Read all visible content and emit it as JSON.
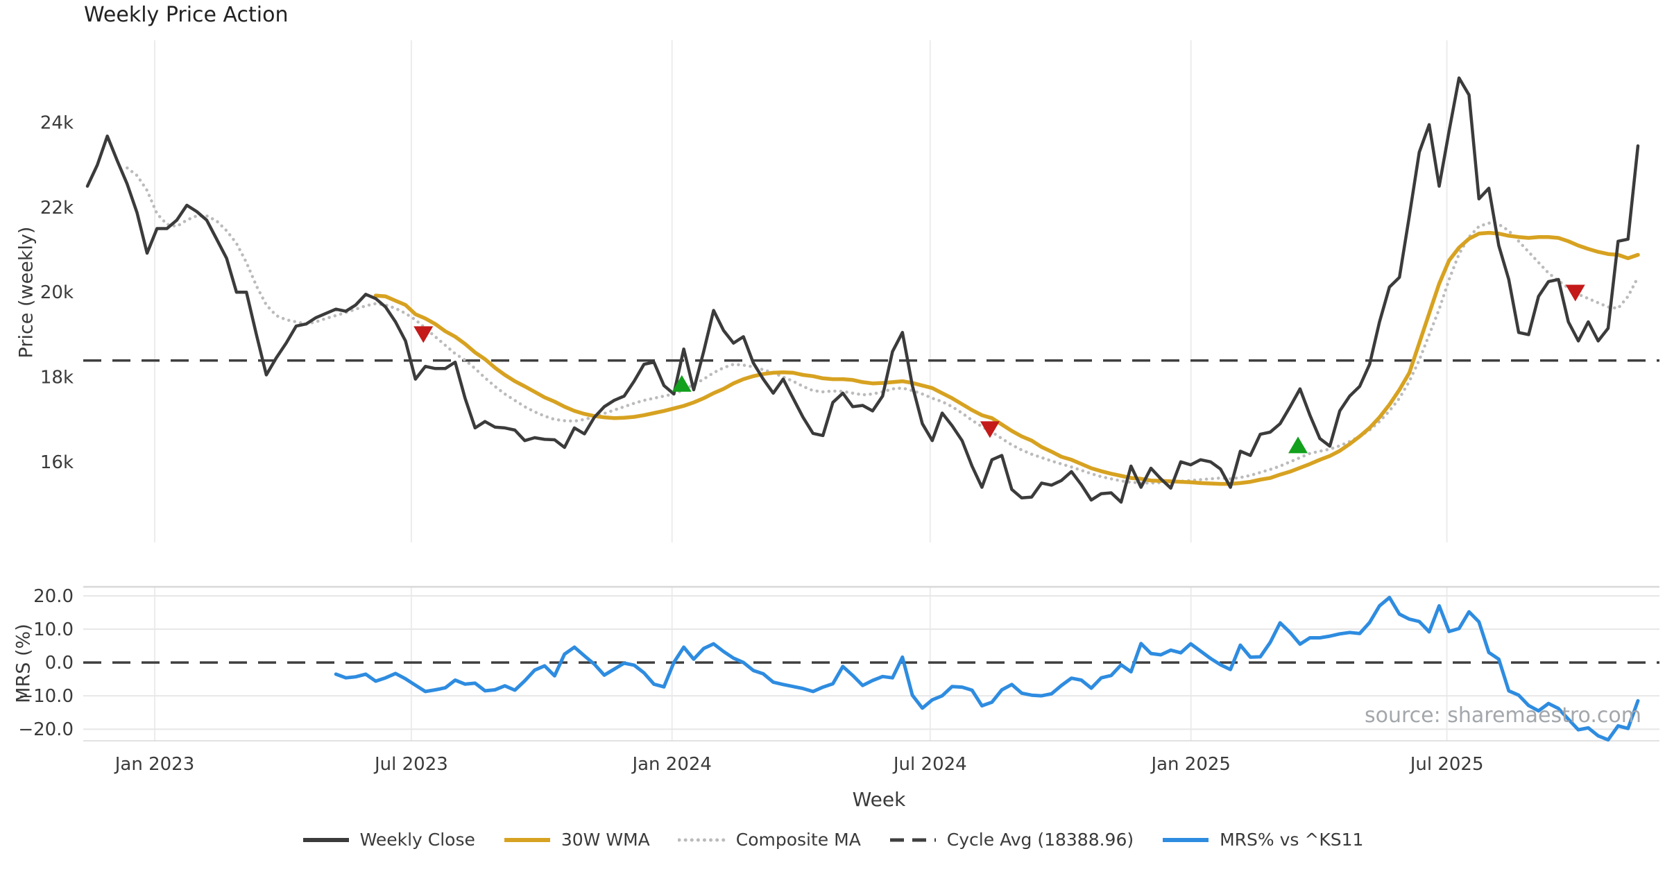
{
  "title": "Weekly Price Action",
  "source": "source: sharemaestro.com",
  "price_panel": {
    "ylabel": "Price (weekly)",
    "yticks": [
      {
        "label": "16k",
        "value": 16000
      },
      {
        "label": "18k",
        "value": 18000
      },
      {
        "label": "20k",
        "value": 20000
      },
      {
        "label": "22k",
        "value": 22000
      },
      {
        "label": "24k",
        "value": 24000
      }
    ]
  },
  "mrs_panel": {
    "ylabel": "MRS (%)",
    "yticks": [
      {
        "label": "20.0",
        "value": 20
      },
      {
        "label": "10.0",
        "value": 10
      },
      {
        "label": "0.0",
        "value": 0
      },
      {
        "label": "−10.0",
        "value": -10
      },
      {
        "label": "−20.0",
        "value": -20
      }
    ]
  },
  "xaxis": {
    "label": "Week",
    "ticks": [
      {
        "label": "Jan 2023",
        "week": 6.77
      },
      {
        "label": "Jul 2023",
        "week": 32.59
      },
      {
        "label": "Jan 2024",
        "week": 58.82
      },
      {
        "label": "Jul 2024",
        "week": 84.79
      },
      {
        "label": "Jan 2025",
        "week": 111.03
      },
      {
        "label": "Jul 2025",
        "week": 136.78
      }
    ]
  },
  "legend": [
    {
      "label": "Weekly Close",
      "style": "solid",
      "color": "#3b3b3b"
    },
    {
      "label": "30W WMA",
      "style": "solid",
      "color": "#d7a221"
    },
    {
      "label": "Composite MA",
      "style": "dotted",
      "color": "#bbbbbb"
    },
    {
      "label": "Cycle Avg (18388.96)",
      "style": "dashed",
      "color": "#3f3f3f"
    },
    {
      "label": "MRS% vs ^KS11",
      "style": "solid",
      "color": "#2e8ce0"
    }
  ],
  "colors": {
    "weekly_close": "#3b3b3b",
    "wma30": "#d7a221",
    "composite": "#bbbbbb",
    "cycle_avg": "#3f3f3f",
    "mrs": "#2e8ce0",
    "sell_marker": "#c41a1a",
    "buy_marker": "#12a01d",
    "grid": "#ececec",
    "mrs_grid": "#e7e7e7",
    "spine": "#d8d8d8",
    "tick_text": "#3a3a3a"
  },
  "chart_data": {
    "type": "line",
    "x_unit": "weeks",
    "title": "Weekly Price Action",
    "xlabel": "Week",
    "panels": [
      {
        "name": "price",
        "ylabel": "Price (weekly)",
        "ylim": [
          14100,
          25940
        ],
        "grid": "vertical-only"
      },
      {
        "name": "mrs",
        "ylabel": "MRS (%)",
        "ylim": [
          -23.5,
          22.7
        ],
        "grid": "both"
      }
    ],
    "x_tick_labels": [
      "Jan 2023",
      "Jul 2023",
      "Jan 2024",
      "Jul 2024",
      "Jan 2025",
      "Jul 2025"
    ],
    "legend_position": "bottom-center",
    "cycle_avg": 18388.96,
    "series": [
      {
        "name": "Weekly Close",
        "panel": "price",
        "start_week": 0,
        "values": [
          22500,
          23000,
          23680,
          23100,
          22550,
          21870,
          20920,
          21500,
          21500,
          21700,
          22050,
          21900,
          21700,
          21250,
          20800,
          20000,
          20000,
          19000,
          18050,
          18450,
          18800,
          19200,
          19250,
          19400,
          19500,
          19600,
          19550,
          19700,
          19950,
          19850,
          19650,
          19300,
          18850,
          17950,
          18250,
          18200,
          18200,
          18350,
          17500,
          16800,
          16950,
          16820,
          16800,
          16750,
          16500,
          16570,
          16530,
          16520,
          16340,
          16800,
          16660,
          17050,
          17300,
          17450,
          17550,
          17900,
          18300,
          18350,
          17800,
          17600,
          18660,
          17700,
          18600,
          19570,
          19100,
          18800,
          18950,
          18330,
          17950,
          17620,
          17950,
          17500,
          17050,
          16670,
          16620,
          17400,
          17620,
          17300,
          17330,
          17200,
          17550,
          18600,
          19050,
          17800,
          16900,
          16500,
          17150,
          16850,
          16500,
          15900,
          15400,
          16050,
          16150,
          15350,
          15150,
          15170,
          15500,
          15450,
          15560,
          15770,
          15460,
          15100,
          15250,
          15270,
          15050,
          15900,
          15400,
          15850,
          15600,
          15380,
          16000,
          15930,
          16050,
          16000,
          15830,
          15400,
          16250,
          16150,
          16650,
          16700,
          16900,
          17300,
          17720,
          17100,
          16550,
          16370,
          17200,
          17550,
          17780,
          18300,
          19300,
          20120,
          20350,
          21800,
          23300,
          23950,
          22500,
          23800,
          25050,
          24650,
          22200,
          22450,
          21100,
          20300,
          19050,
          19000,
          19900,
          20250,
          20300,
          19300,
          18850,
          19300,
          18850,
          19150,
          21200,
          21250,
          23450
        ]
      },
      {
        "name": "30W WMA",
        "panel": "price",
        "start_week": 29,
        "values": [
          19920,
          19900,
          19800,
          19700,
          19480,
          19380,
          19250,
          19080,
          18950,
          18780,
          18580,
          18420,
          18220,
          18050,
          17900,
          17780,
          17650,
          17520,
          17420,
          17300,
          17200,
          17130,
          17080,
          17050,
          17030,
          17040,
          17060,
          17100,
          17150,
          17200,
          17260,
          17320,
          17400,
          17500,
          17620,
          17720,
          17850,
          17950,
          18020,
          18070,
          18100,
          18110,
          18100,
          18050,
          18020,
          17970,
          17950,
          17950,
          17930,
          17880,
          17850,
          17860,
          17880,
          17900,
          17860,
          17800,
          17740,
          17620,
          17500,
          17360,
          17220,
          17100,
          17030,
          16880,
          16730,
          16600,
          16500,
          16350,
          16240,
          16120,
          16050,
          15950,
          15850,
          15780,
          15720,
          15670,
          15620,
          15600,
          15560,
          15550,
          15540,
          15530,
          15520,
          15500,
          15490,
          15480,
          15480,
          15500,
          15530,
          15580,
          15620,
          15700,
          15770,
          15860,
          15950,
          16050,
          16140,
          16260,
          16420,
          16600,
          16800,
          17050,
          17350,
          17700,
          18100,
          18800,
          19500,
          20200,
          20750,
          21050,
          21260,
          21380,
          21400,
          21380,
          21330,
          21300,
          21280,
          21300,
          21300,
          21280,
          21200,
          21100,
          21020,
          20950,
          20900,
          20880,
          20800,
          20880
        ]
      },
      {
        "name": "Composite MA",
        "panel": "price",
        "start_week": 4,
        "values": [
          22930,
          22750,
          22400,
          21850,
          21600,
          21550,
          21700,
          21800,
          21800,
          21680,
          21450,
          21150,
          20700,
          20150,
          19700,
          19450,
          19350,
          19300,
          19250,
          19300,
          19380,
          19450,
          19520,
          19600,
          19680,
          19730,
          19700,
          19620,
          19500,
          19350,
          19150,
          18950,
          18750,
          18550,
          18400,
          18200,
          17980,
          17780,
          17600,
          17450,
          17300,
          17180,
          17080,
          17000,
          16970,
          16960,
          17000,
          17060,
          17140,
          17220,
          17300,
          17380,
          17450,
          17500,
          17550,
          17600,
          17700,
          17820,
          17950,
          18100,
          18220,
          18300,
          18280,
          18240,
          18170,
          18100,
          18000,
          17900,
          17780,
          17680,
          17650,
          17670,
          17660,
          17620,
          17580,
          17600,
          17650,
          17720,
          17740,
          17680,
          17600,
          17500,
          17420,
          17300,
          17150,
          16980,
          16830,
          16700,
          16550,
          16400,
          16280,
          16180,
          16100,
          16020,
          15950,
          15880,
          15800,
          15720,
          15650,
          15600,
          15550,
          15520,
          15500,
          15500,
          15510,
          15520,
          15540,
          15560,
          15580,
          15600,
          15620,
          15600,
          15630,
          15680,
          15750,
          15820,
          15900,
          16000,
          16100,
          16200,
          16250,
          16300,
          16380,
          16480,
          16600,
          16750,
          16950,
          17200,
          17500,
          17900,
          18400,
          19000,
          19600,
          20300,
          20900,
          21300,
          21550,
          21630,
          21600,
          21450,
          21200,
          20950,
          20700,
          20450,
          20270,
          20100,
          19950,
          19850,
          19750,
          19650,
          19620,
          19900,
          20350
        ]
      },
      {
        "name": "MRS% vs ^KS11",
        "panel": "mrs",
        "start_week": 25,
        "values": [
          -3.5,
          -4.6,
          -4.3,
          -3.5,
          -5.6,
          -4.6,
          -3.3,
          -4.9,
          -6.8,
          -8.7,
          -8.2,
          -7.6,
          -5.3,
          -6.5,
          -6.2,
          -8.5,
          -8.2,
          -7.0,
          -8.3,
          -5.5,
          -2.3,
          -1.0,
          -4.0,
          2.5,
          4.6,
          2.0,
          -0.5,
          -3.8,
          -2.0,
          -0.2,
          -0.8,
          -3.1,
          -6.5,
          -7.3,
          0.0,
          4.6,
          1.0,
          4.2,
          5.6,
          3.3,
          1.3,
          0.0,
          -2.4,
          -3.4,
          -5.9,
          -6.6,
          -7.2,
          -7.8,
          -8.7,
          -7.4,
          -6.4,
          -1.2,
          -3.9,
          -6.9,
          -5.4,
          -4.2,
          -4.6,
          1.6,
          -9.8,
          -13.7,
          -11.2,
          -10.0,
          -7.2,
          -7.4,
          -8.3,
          -13.0,
          -11.9,
          -8.2,
          -6.6,
          -9.2,
          -9.8,
          -10.0,
          -9.4,
          -6.9,
          -4.7,
          -5.3,
          -7.7,
          -4.6,
          -3.9,
          -0.7,
          -2.8,
          5.7,
          2.7,
          2.3,
          3.7,
          2.9,
          5.6,
          3.4,
          1.2,
          -0.7,
          -2.1,
          5.2,
          1.6,
          1.7,
          6.0,
          11.9,
          9.0,
          5.5,
          7.4,
          7.4,
          7.9,
          8.6,
          9.0,
          8.7,
          12.0,
          17.0,
          19.5,
          14.5,
          13.0,
          12.3,
          9.2,
          17.0,
          9.3,
          10.2,
          15.2,
          12.2,
          3.0,
          1.0,
          -8.5,
          -9.8,
          -12.9,
          -14.5,
          -12.3,
          -13.8,
          -17.0,
          -20.2,
          -19.6,
          -22.0,
          -23.2,
          -19.0,
          -19.8,
          -11.5
        ]
      }
    ],
    "markers": [
      {
        "kind": "sell",
        "week": 33.8,
        "price": 19000
      },
      {
        "kind": "buy",
        "week": 59.8,
        "price": 17850
      },
      {
        "kind": "sell",
        "week": 90.8,
        "price": 16760
      },
      {
        "kind": "buy",
        "week": 121.8,
        "price": 16400
      },
      {
        "kind": "sell",
        "week": 149.7,
        "price": 19980
      }
    ]
  }
}
